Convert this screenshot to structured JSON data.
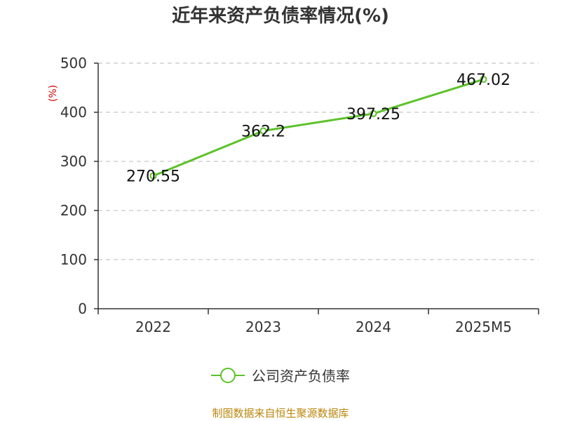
{
  "title": "近年来资产负债率情况(%)",
  "y_unit": "(%)",
  "source": "制图数据来自恒生聚源数据库",
  "colors": {
    "series": "#5cc22a",
    "axis": "#333333",
    "grid": "#c8c8c8",
    "text": "#333333"
  },
  "chart_data": {
    "type": "line",
    "categories": [
      "2022",
      "2023",
      "2024",
      "2025M5"
    ],
    "series": [
      {
        "name": "公司资产负债率",
        "values": [
          270.55,
          362.2,
          397.25,
          467.02
        ]
      }
    ],
    "data_labels": [
      "270.55",
      "362.2",
      "397.25",
      "467.02"
    ],
    "ylim": [
      0,
      500
    ],
    "yticks": [
      0,
      100,
      200,
      300,
      400,
      500
    ],
    "grid": true,
    "legend_position": "bottom"
  }
}
